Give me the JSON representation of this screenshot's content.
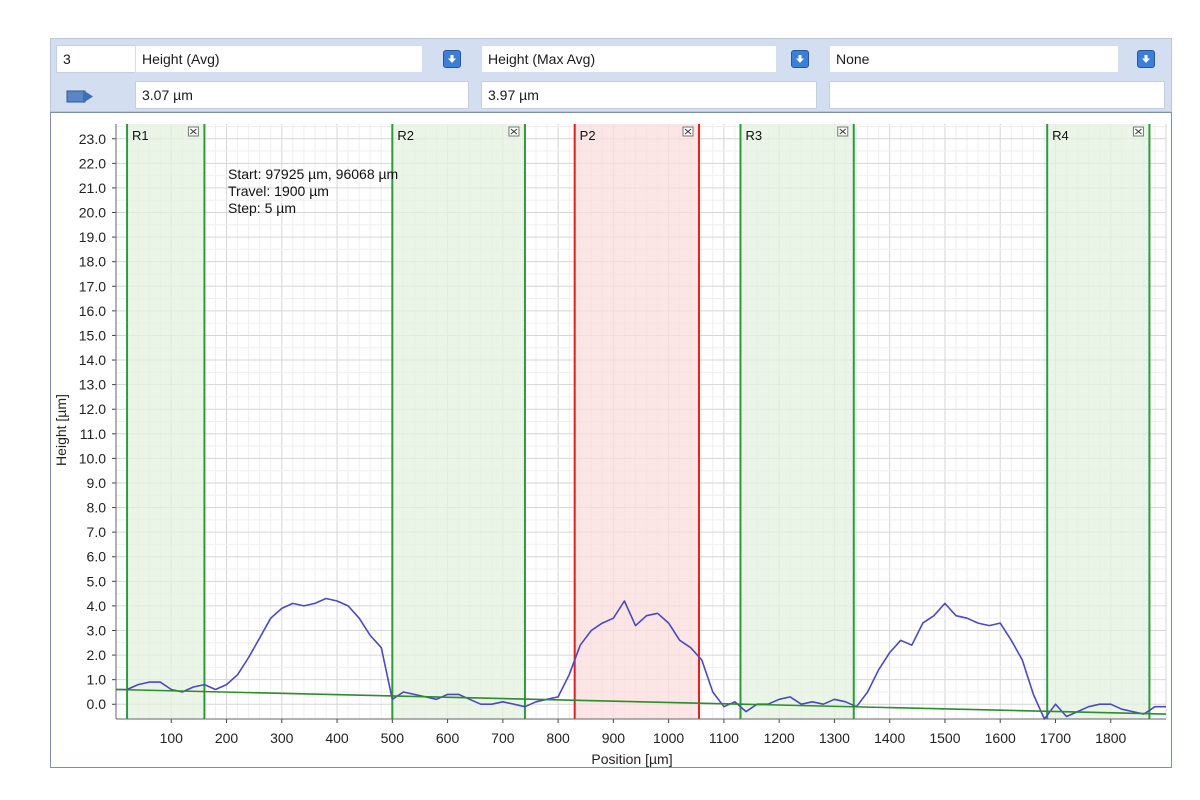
{
  "toolbar": {
    "profile_select": "3",
    "param1": {
      "name": "Height (Avg)",
      "value": "3.07 µm"
    },
    "param2": {
      "name": "Height (Max Avg)",
      "value": "3.97 µm"
    },
    "param3": {
      "name": "None",
      "value": ""
    }
  },
  "annotation": {
    "start": "Start: 97925 µm, 96068 µm",
    "travel": "Travel: 1900 µm",
    "step": "Step: 5 µm"
  },
  "colors": {
    "ref_region": "#2e9a3a",
    "ref_fill": "#e3f2df",
    "peak_region": "#e02020",
    "peak_fill": "#fbdcdc",
    "profile_line": "#4a4abf",
    "reference_line": "#2e8b2e"
  },
  "regions": [
    {
      "label": "R1",
      "type": "reference",
      "x0": 20,
      "x1": 160
    },
    {
      "label": "R2",
      "type": "reference",
      "x0": 500,
      "x1": 740
    },
    {
      "label": "P2",
      "type": "peak",
      "x0": 830,
      "x1": 1055
    },
    {
      "label": "R3",
      "type": "reference",
      "x0": 1130,
      "x1": 1335
    },
    {
      "label": "R4",
      "type": "reference",
      "x0": 1685,
      "x1": 1870
    }
  ],
  "chart_data": {
    "type": "line",
    "xlabel": "Position [µm]",
    "ylabel": "Height [µm]",
    "xlim": [
      0,
      1900
    ],
    "ylim": [
      -0.6,
      23.6
    ],
    "xticks": [
      100,
      200,
      300,
      400,
      500,
      600,
      700,
      800,
      900,
      1000,
      1100,
      1200,
      1300,
      1400,
      1500,
      1600,
      1700,
      1800
    ],
    "yticks": [
      0.0,
      1.0,
      2.0,
      3.0,
      4.0,
      5.0,
      6.0,
      7.0,
      8.0,
      9.0,
      10.0,
      11.0,
      12.0,
      13.0,
      14.0,
      15.0,
      16.0,
      17.0,
      18.0,
      19.0,
      20.0,
      21.0,
      22.0,
      23.0
    ],
    "grid": true,
    "series": [
      {
        "role": "profile",
        "x": [
          0,
          20,
          40,
          60,
          80,
          100,
          120,
          140,
          160,
          180,
          200,
          220,
          240,
          260,
          280,
          300,
          320,
          340,
          360,
          380,
          400,
          420,
          440,
          460,
          480,
          500,
          520,
          540,
          560,
          580,
          600,
          620,
          640,
          660,
          680,
          700,
          720,
          740,
          760,
          780,
          800,
          820,
          840,
          860,
          880,
          900,
          920,
          940,
          960,
          980,
          1000,
          1020,
          1040,
          1060,
          1080,
          1100,
          1120,
          1140,
          1160,
          1180,
          1200,
          1220,
          1240,
          1260,
          1280,
          1300,
          1320,
          1340,
          1360,
          1380,
          1400,
          1420,
          1440,
          1460,
          1480,
          1500,
          1520,
          1540,
          1560,
          1580,
          1600,
          1620,
          1640,
          1660,
          1680,
          1700,
          1720,
          1740,
          1760,
          1780,
          1800,
          1820,
          1840,
          1860,
          1880,
          1900
        ],
        "y": [
          0.6,
          0.6,
          0.8,
          0.9,
          0.9,
          0.6,
          0.5,
          0.7,
          0.8,
          0.6,
          0.8,
          1.2,
          1.9,
          2.7,
          3.5,
          3.9,
          4.1,
          4.0,
          4.1,
          4.3,
          4.2,
          4.0,
          3.5,
          2.8,
          2.3,
          0.2,
          0.5,
          0.4,
          0.3,
          0.2,
          0.4,
          0.4,
          0.2,
          0.0,
          0.0,
          0.1,
          0.0,
          -0.1,
          0.1,
          0.2,
          0.3,
          1.2,
          2.4,
          3.0,
          3.3,
          3.5,
          4.2,
          3.2,
          3.6,
          3.7,
          3.3,
          2.6,
          2.3,
          1.8,
          0.5,
          -0.1,
          0.1,
          -0.3,
          0.0,
          0.0,
          0.2,
          0.3,
          0.0,
          0.1,
          0.0,
          0.2,
          0.1,
          -0.1,
          0.5,
          1.4,
          2.1,
          2.6,
          2.4,
          3.3,
          3.6,
          4.1,
          3.6,
          3.5,
          3.3,
          3.2,
          3.3,
          2.6,
          1.8,
          0.4,
          -0.6,
          0.0,
          -0.5,
          -0.3,
          -0.1,
          0.0,
          0.0,
          -0.2,
          -0.3,
          -0.4,
          -0.1,
          -0.1
        ]
      },
      {
        "role": "reference",
        "x": [
          0,
          1900
        ],
        "y": [
          0.6,
          -0.4
        ]
      }
    ]
  }
}
